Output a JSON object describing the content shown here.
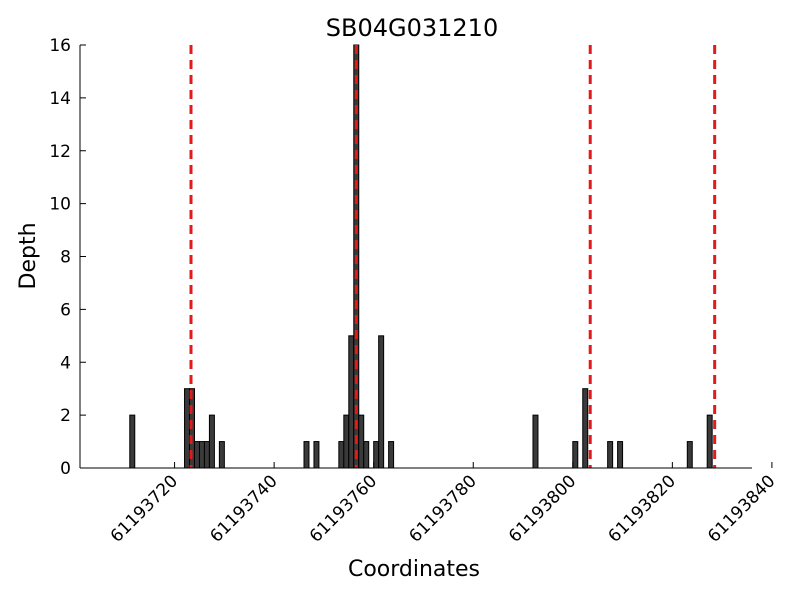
{
  "chart_data": {
    "type": "bar",
    "title": "SB04G031210",
    "xlabel": "Coordinates",
    "ylabel": "Depth",
    "xlim": [
      61193701,
      61193836
    ],
    "ylim": [
      0,
      16
    ],
    "xticks": [
      61193720,
      61193740,
      61193760,
      61193780,
      61193800,
      61193820,
      61193840
    ],
    "xtick_labels": [
      "61193720",
      "61193740",
      "61193760",
      "61193780",
      "61193800",
      "61193820",
      "61193840"
    ],
    "yticks": [
      0,
      2,
      4,
      6,
      8,
      10,
      12,
      14,
      16
    ],
    "ytick_labels": [
      "0",
      "2",
      "4",
      "6",
      "8",
      "10",
      "12",
      "14",
      "16"
    ],
    "bar_width": 1,
    "grid": false,
    "bars": [
      {
        "x": 61193711,
        "depth": 2
      },
      {
        "x": 61193722,
        "depth": 3
      },
      {
        "x": 61193723,
        "depth": 3
      },
      {
        "x": 61193724,
        "depth": 1
      },
      {
        "x": 61193725,
        "depth": 1
      },
      {
        "x": 61193726,
        "depth": 1
      },
      {
        "x": 61193727,
        "depth": 2
      },
      {
        "x": 61193729,
        "depth": 1
      },
      {
        "x": 61193746,
        "depth": 1
      },
      {
        "x": 61193748,
        "depth": 1
      },
      {
        "x": 61193753,
        "depth": 1
      },
      {
        "x": 61193754,
        "depth": 2
      },
      {
        "x": 61193755,
        "depth": 5
      },
      {
        "x": 61193756,
        "depth": 16
      },
      {
        "x": 61193757,
        "depth": 2
      },
      {
        "x": 61193758,
        "depth": 1
      },
      {
        "x": 61193760,
        "depth": 1
      },
      {
        "x": 61193761,
        "depth": 5
      },
      {
        "x": 61193763,
        "depth": 1
      },
      {
        "x": 61193792,
        "depth": 2
      },
      {
        "x": 61193800,
        "depth": 1
      },
      {
        "x": 61193802,
        "depth": 3
      },
      {
        "x": 61193807,
        "depth": 1
      },
      {
        "x": 61193809,
        "depth": 1
      },
      {
        "x": 61193823,
        "depth": 1
      },
      {
        "x": 61193827,
        "depth": 2
      }
    ],
    "reference_lines": [
      {
        "x": 61193723.3,
        "color": "#e31a1c",
        "style": "dashed"
      },
      {
        "x": 61193756.5,
        "color": "#e31a1c",
        "style": "dashed"
      },
      {
        "x": 61193803.5,
        "color": "#e31a1c",
        "style": "dashed"
      },
      {
        "x": 61193828.5,
        "color": "#e31a1c",
        "style": "dashed"
      }
    ]
  }
}
